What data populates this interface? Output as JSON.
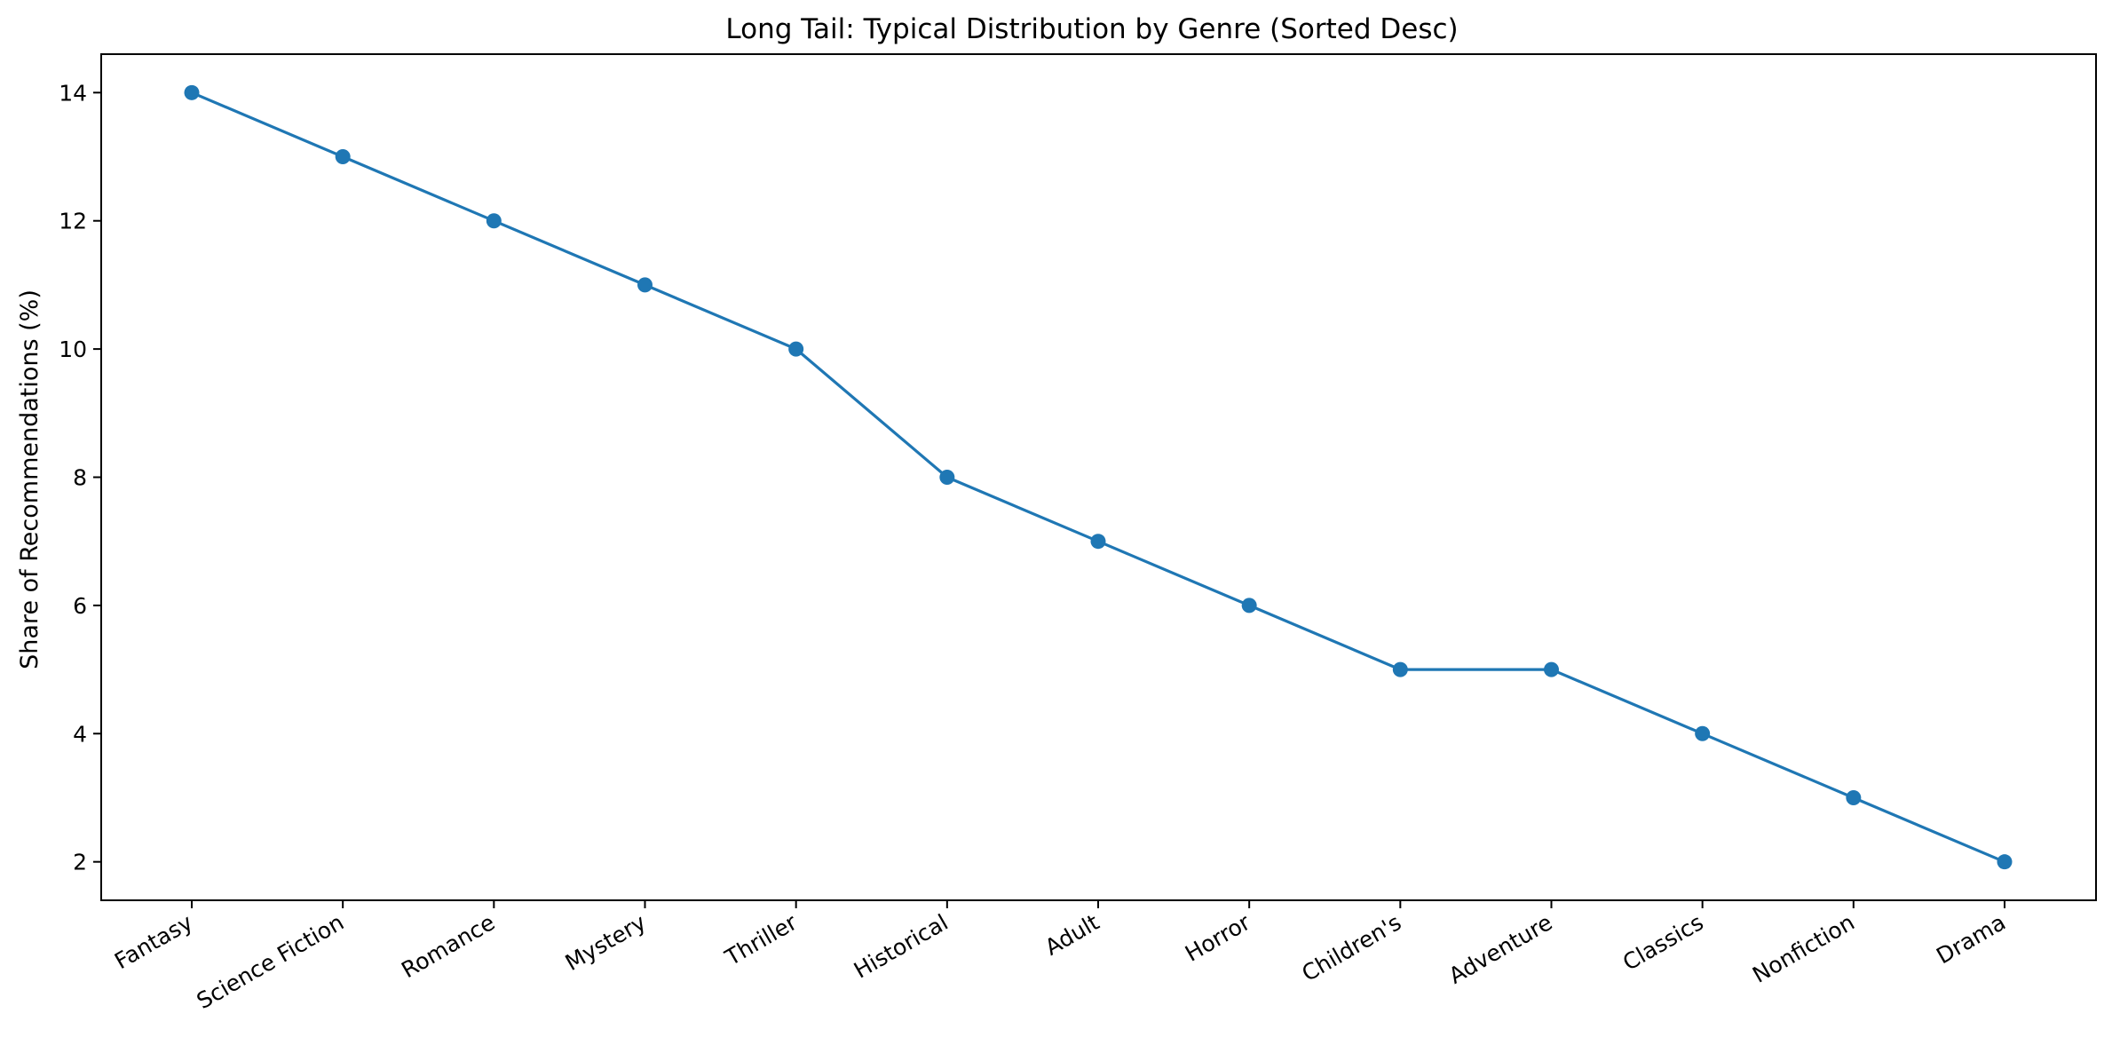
{
  "chart_data": {
    "type": "line",
    "title": "Long Tail: Typical Distribution by Genre (Sorted Desc)",
    "xlabel": "",
    "ylabel": "Share of Recommendations (%)",
    "categories": [
      "Fantasy",
      "Science Fiction",
      "Romance",
      "Mystery",
      "Thriller",
      "Historical",
      "Adult",
      "Horror",
      "Children's",
      "Adventure",
      "Classics",
      "Nonfiction",
      "Drama"
    ],
    "series": [
      {
        "values": [
          14,
          13,
          12,
          11,
          10,
          8,
          7,
          6,
          5,
          5,
          4,
          3,
          2
        ]
      }
    ],
    "ylim": [
      1.4,
      14.6
    ],
    "yticks": [
      "2",
      "4",
      "6",
      "8",
      "10",
      "12",
      "14"
    ],
    "grid": false,
    "legend": "none",
    "colors": {
      "series": "#1f77b4",
      "axes": "#000000",
      "background": "#ffffff"
    }
  }
}
